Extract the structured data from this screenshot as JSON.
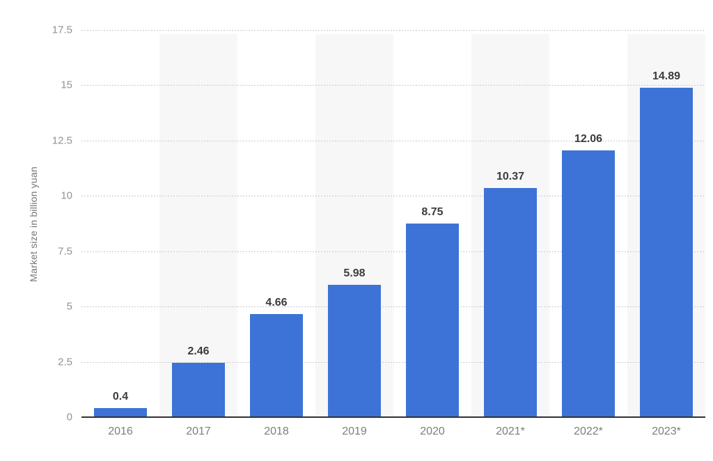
{
  "chart_data": {
    "type": "bar",
    "title": "",
    "xlabel": "",
    "ylabel": "Market size in billion yuan",
    "categories": [
      "2016",
      "2017",
      "2018",
      "2019",
      "2020",
      "2021*",
      "2022*",
      "2023*"
    ],
    "values": [
      0.4,
      2.46,
      4.66,
      5.98,
      8.75,
      10.37,
      12.06,
      14.89
    ],
    "value_labels": [
      "0.4",
      "2.46",
      "4.66",
      "5.98",
      "8.75",
      "10.37",
      "12.06",
      "14.89"
    ],
    "ylim": [
      0,
      17.5
    ],
    "ytick_step": 2.5,
    "yticks": [
      "0",
      "2.5",
      "5",
      "7.5",
      "10",
      "12.5",
      "15",
      "17.5"
    ],
    "grid": "horizontal-dotted",
    "legend": "none",
    "alternating_column_stripes": true,
    "striped_columns": [
      "2017",
      "2019",
      "2021*",
      "2023*"
    ]
  },
  "colors": {
    "bar": "#3d73d6",
    "column_stripe": "#f7f7f7",
    "gridline": "#c9c9c9",
    "axis_line": "#313131",
    "value_label": "#3c3c3c",
    "tick_label": "#929292",
    "category_label": "#7d7d7d",
    "y_title": "#767676",
    "background": "#ffffff"
  }
}
